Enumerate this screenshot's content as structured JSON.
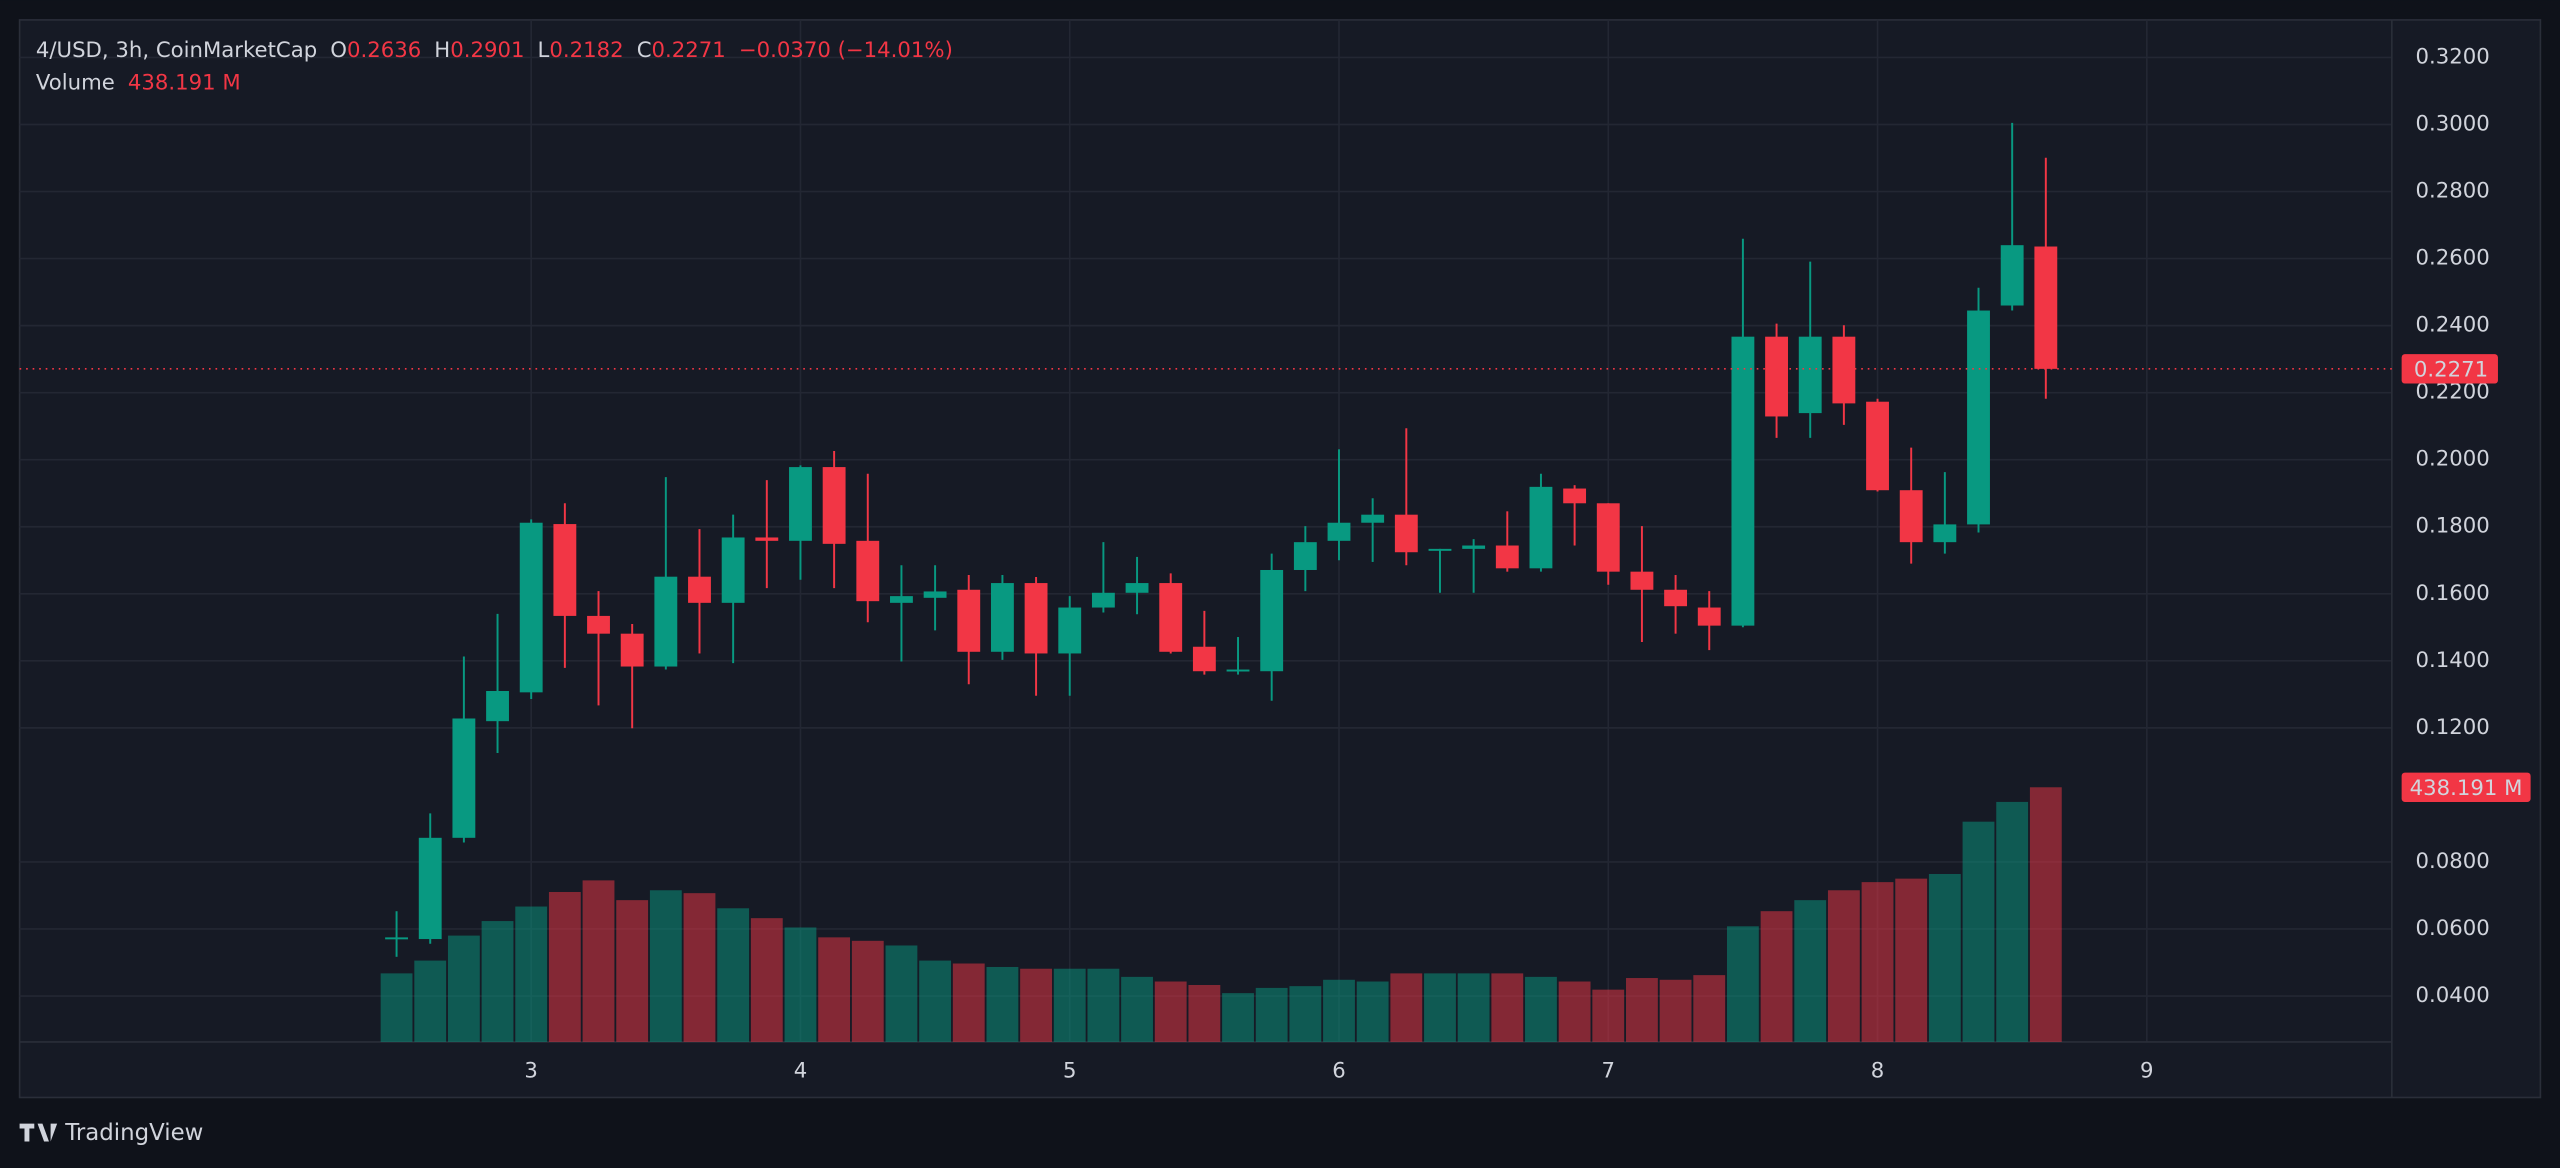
{
  "chart_data": {
    "type": "candlestick",
    "header": {
      "symbol": "4/USD, 3h, CoinMarketCap",
      "o_label": "O",
      "open": "0.2636",
      "h_label": "H",
      "high": "0.2901",
      "l_label": "L",
      "low": "0.2182",
      "c_label": "C",
      "close": "0.2271",
      "change": "−0.0370 (−14.01%)",
      "volume_title": "Volume",
      "volume": "438.191 M"
    },
    "brand": "TradingView",
    "x": [
      2.5,
      2.625,
      2.75,
      2.875,
      3,
      3.125,
      3.25,
      3.375,
      3.5,
      3.625,
      3.75,
      3.875,
      4,
      4.125,
      4.25,
      4.375,
      4.5,
      4.625,
      4.75,
      4.875,
      5,
      5.125,
      5.25,
      5.375,
      5.5,
      5.625,
      5.75,
      5.875,
      6,
      6.125,
      6.25,
      6.375,
      6.5,
      6.625,
      6.75,
      6.875,
      7,
      7.125,
      7.25,
      7.375,
      7.5,
      7.625,
      7.75,
      7.875,
      8,
      8.125,
      8.25,
      8.375,
      8.5,
      8.625
    ],
    "open": [
      0.057,
      0.057,
      0.0872,
      0.122,
      0.1306,
      0.1808,
      0.1534,
      0.1481,
      0.1383,
      0.1651,
      0.1573,
      0.1768,
      0.1758,
      0.1978,
      0.1758,
      0.1573,
      0.1588,
      0.1612,
      0.1427,
      0.1632,
      0.1422,
      0.1559,
      0.1603,
      0.1632,
      0.1442,
      0.1369,
      0.1369,
      0.1671,
      0.1758,
      0.1812,
      0.1836,
      0.1729,
      0.1734,
      0.1744,
      0.1676,
      0.1914,
      0.187,
      0.1666,
      0.1612,
      0.1559,
      0.1505,
      0.2367,
      0.2139,
      0.2367,
      0.2173,
      0.1909,
      0.1754,
      0.1807,
      0.246,
      0.2636
    ],
    "high": [
      0.0653,
      0.0945,
      0.1413,
      0.154,
      0.1822,
      0.187,
      0.1608,
      0.151,
      0.1948,
      0.1793,
      0.1836,
      0.1939,
      0.1983,
      0.2026,
      0.1958,
      0.1685,
      0.1685,
      0.1656,
      0.1656,
      0.165,
      0.1593,
      0.1754,
      0.171,
      0.1661,
      0.1549,
      0.1471,
      0.172,
      0.1802,
      0.2031,
      0.1885,
      0.2094,
      0.1734,
      0.1763,
      0.1846,
      0.1958,
      0.1924,
      0.187,
      0.1802,
      0.1656,
      0.1608,
      0.2659,
      0.2406,
      0.2591,
      0.2401,
      0.2182,
      0.2036,
      0.1963,
      0.2513,
      0.3005,
      0.2901
    ],
    "low": [
      0.0517,
      0.0556,
      0.0858,
      0.1125,
      0.1286,
      0.1379,
      0.1267,
      0.1199,
      0.1374,
      0.1422,
      0.1393,
      0.1617,
      0.1642,
      0.1617,
      0.1515,
      0.1398,
      0.1491,
      0.133,
      0.1403,
      0.1296,
      0.1296,
      0.1544,
      0.1539,
      0.1422,
      0.1359,
      0.1359,
      0.1281,
      0.1608,
      0.17,
      0.1695,
      0.1685,
      0.1603,
      0.1603,
      0.1666,
      0.1666,
      0.1744,
      0.1627,
      0.1456,
      0.1481,
      0.1432,
      0.15,
      0.2065,
      0.2065,
      0.2104,
      0.1905,
      0.169,
      0.172,
      0.1783,
      0.2445,
      0.2182
    ],
    "close": [
      0.0575,
      0.0872,
      0.1228,
      0.131,
      0.1812,
      0.1534,
      0.1481,
      0.1383,
      0.1651,
      0.1573,
      0.1768,
      0.1758,
      0.1978,
      0.1749,
      0.1578,
      0.1593,
      0.1607,
      0.1427,
      0.1632,
      0.1422,
      0.1559,
      0.1603,
      0.1632,
      0.1427,
      0.1369,
      0.1374,
      0.1671,
      0.1754,
      0.1812,
      0.1836,
      0.1724,
      0.1734,
      0.1744,
      0.1676,
      0.1919,
      0.187,
      0.1666,
      0.1612,
      0.1563,
      0.1505,
      0.2367,
      0.2129,
      0.2367,
      0.2168,
      0.1909,
      0.1754,
      0.1807,
      0.2445,
      0.264,
      0.2271
    ],
    "volume": [
      118,
      140,
      183,
      208,
      233,
      258,
      278,
      244,
      261,
      256,
      230,
      213,
      197,
      180,
      174,
      166,
      140,
      135,
      129,
      126,
      126,
      126,
      112,
      104,
      98,
      84,
      93,
      96,
      107,
      104,
      118,
      118,
      118,
      118,
      112,
      104,
      90,
      110,
      107,
      115,
      199,
      225,
      244,
      261,
      275,
      281,
      289,
      379,
      413,
      438.191
    ],
    "up_color": "#089981",
    "down_color": "#f23645",
    "xlim": [
      1.1,
      9.91
    ],
    "xticks": [
      3,
      4,
      5,
      6,
      7,
      8,
      9
    ],
    "ylim": [
      0.0263,
      0.3312
    ],
    "yticks": [
      {
        "value": 0.32,
        "label": "0.3200"
      },
      {
        "value": 0.3,
        "label": "0.3000"
      },
      {
        "value": 0.28,
        "label": "0.2800"
      },
      {
        "value": 0.26,
        "label": "0.2600"
      },
      {
        "value": 0.24,
        "label": "0.2400"
      },
      {
        "value": 0.22,
        "label": "0.2200"
      },
      {
        "value": 0.2,
        "label": "0.2000"
      },
      {
        "value": 0.18,
        "label": "0.1800"
      },
      {
        "value": 0.16,
        "label": "0.1600"
      },
      {
        "value": 0.14,
        "label": "0.1400"
      },
      {
        "value": 0.12,
        "label": "0.1200"
      },
      {
        "value": 0.08,
        "label": "0.0800"
      },
      {
        "value": 0.06,
        "label": "0.0600"
      },
      {
        "value": 0.04,
        "label": "0.0400"
      }
    ],
    "y2lim": [
      0,
      500
    ],
    "grid": true
  }
}
